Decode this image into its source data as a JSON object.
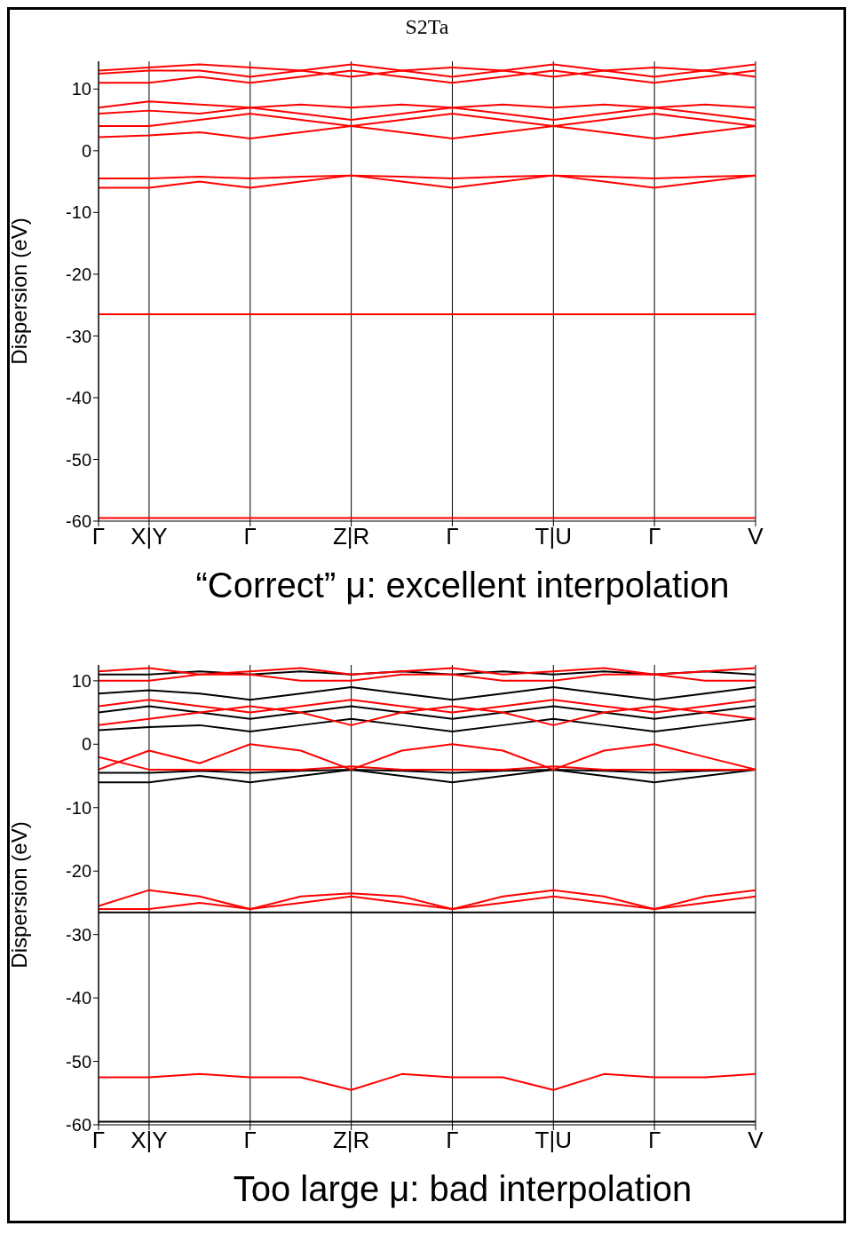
{
  "chart_data": [
    {
      "type": "line",
      "title": "S2Ta",
      "ylabel": "Dispersion (eV)",
      "annotations": [
        "“Correct” μ: excellent interpolation"
      ],
      "categories": [
        "Γ",
        "X|Y",
        null,
        "Γ",
        null,
        "Z|R",
        null,
        "Γ",
        null,
        "T|U",
        null,
        "Γ",
        null,
        "V"
      ],
      "ylim": [
        -60,
        14.5
      ],
      "yticks": [
        -60,
        -50,
        -40,
        -30,
        -20,
        -10,
        0,
        10
      ],
      "grid": "x",
      "marker": "none",
      "line_style": "solid",
      "series": [
        {
          "color": "#ff0000",
          "values": [
            -59.5,
            -59.5,
            -59.5,
            -59.5,
            -59.5,
            -59.5,
            -59.5,
            -59.5,
            -59.5,
            -59.5,
            -59.5,
            -59.5,
            -59.5,
            -59.5
          ]
        },
        {
          "color": "#ff0000",
          "values": [
            -26.5,
            -26.5,
            -26.5,
            -26.5,
            -26.5,
            -26.5,
            -26.5,
            -26.5,
            -26.5,
            -26.5,
            -26.5,
            -26.5,
            -26.5,
            -26.5
          ]
        },
        {
          "color": "#ff0000",
          "values": [
            -6,
            -6,
            -5,
            -6,
            -5,
            -4,
            -5,
            -6,
            -5,
            -4,
            -5,
            -6,
            -5,
            -4
          ]
        },
        {
          "color": "#ff0000",
          "values": [
            -4.5,
            -4.5,
            -4.2,
            -4.5,
            -4.2,
            -4,
            -4.2,
            -4.5,
            -4.2,
            -4,
            -4.2,
            -4.5,
            -4.2,
            -4
          ]
        },
        {
          "color": "#ff0000",
          "values": [
            2.2,
            2.5,
            3,
            2,
            3,
            4,
            3,
            2,
            3,
            4,
            3,
            2,
            3,
            4
          ]
        },
        {
          "color": "#ff0000",
          "values": [
            4,
            4,
            5,
            6,
            5,
            4,
            5,
            6,
            5,
            4,
            5,
            6,
            5,
            4
          ]
        },
        {
          "color": "#ff0000",
          "values": [
            6,
            6.5,
            6,
            7,
            6,
            5,
            6,
            7,
            6,
            5,
            6,
            7,
            6,
            5
          ]
        },
        {
          "color": "#ff0000",
          "values": [
            7,
            8,
            7.5,
            7,
            7.5,
            7,
            7.5,
            7,
            7.5,
            7,
            7.5,
            7,
            7.5,
            7
          ]
        },
        {
          "color": "#ff0000",
          "values": [
            11,
            11,
            12,
            11,
            12,
            13,
            12,
            11,
            12,
            13,
            12,
            11,
            12,
            13
          ]
        },
        {
          "color": "#ff0000",
          "values": [
            12.5,
            13,
            13,
            12,
            13,
            12,
            13,
            12,
            13,
            12,
            13,
            12,
            13,
            12
          ]
        },
        {
          "color": "#ff0000",
          "values": [
            13,
            13.5,
            14,
            13.5,
            13,
            14,
            13,
            13.5,
            13,
            14,
            13,
            13.5,
            13,
            14
          ]
        }
      ]
    },
    {
      "type": "line",
      "ylabel": "Dispersion (eV)",
      "annotations": [
        "Too large μ: bad interpolation"
      ],
      "categories": [
        "Γ",
        "X|Y",
        null,
        "Γ",
        null,
        "Z|R",
        null,
        "Γ",
        null,
        "T|U",
        null,
        "Γ",
        null,
        "V"
      ],
      "ylim": [
        -60,
        12.5
      ],
      "yticks": [
        -60,
        -50,
        -40,
        -30,
        -20,
        -10,
        0,
        10
      ],
      "grid": "x",
      "marker": "none",
      "line_style": "solid",
      "series": [
        {
          "color": "#000000",
          "values": [
            -59.5,
            -59.5,
            -59.5,
            -59.5,
            -59.5,
            -59.5,
            -59.5,
            -59.5,
            -59.5,
            -59.5,
            -59.5,
            -59.5,
            -59.5,
            -59.5
          ]
        },
        {
          "color": "#000000",
          "values": [
            -26.5,
            -26.5,
            -26.5,
            -26.5,
            -26.5,
            -26.5,
            -26.5,
            -26.5,
            -26.5,
            -26.5,
            -26.5,
            -26.5,
            -26.5,
            -26.5
          ]
        },
        {
          "color": "#000000",
          "values": [
            -6,
            -6,
            -5,
            -6,
            -5,
            -4,
            -5,
            -6,
            -5,
            -4,
            -5,
            -6,
            -5,
            -4
          ]
        },
        {
          "color": "#000000",
          "values": [
            -4.5,
            -4.5,
            -4.2,
            -4.5,
            -4.2,
            -4,
            -4.2,
            -4.5,
            -4.2,
            -4,
            -4.2,
            -4.5,
            -4.2,
            -4
          ]
        },
        {
          "color": "#000000",
          "values": [
            2.2,
            2.7,
            3,
            2,
            3,
            4,
            3,
            2,
            3,
            4,
            3,
            2,
            3,
            4
          ]
        },
        {
          "color": "#000000",
          "values": [
            5,
            6,
            5,
            4,
            5,
            6,
            5,
            4,
            5,
            6,
            5,
            4,
            5,
            6
          ]
        },
        {
          "color": "#000000",
          "values": [
            8,
            8.5,
            8,
            7,
            8,
            9,
            8,
            7,
            8,
            9,
            8,
            7,
            8,
            9
          ]
        },
        {
          "color": "#000000",
          "values": [
            11,
            11,
            11.5,
            11,
            11.5,
            11,
            11.5,
            11,
            11.5,
            11,
            11.5,
            11,
            11.5,
            11
          ]
        },
        {
          "color": "#ff0000",
          "values": [
            -52.5,
            -52.5,
            -52,
            -52.5,
            -52.5,
            -54.5,
            -52,
            -52.5,
            -52.5,
            -54.5,
            -52,
            -52.5,
            -52.5,
            -52
          ]
        },
        {
          "color": "#ff0000",
          "values": [
            -26,
            -26,
            -25,
            -26,
            -25,
            -24,
            -25,
            -26,
            -25,
            -24,
            -25,
            -26,
            -25,
            -24
          ]
        },
        {
          "color": "#ff0000",
          "values": [
            -25.5,
            -23,
            -24,
            -26,
            -24,
            -23.5,
            -24,
            -26,
            -24,
            -23,
            -24,
            -26,
            -24,
            -23
          ]
        },
        {
          "color": "#ff0000",
          "values": [
            -4,
            -1,
            -3,
            0,
            -1,
            -4,
            -1,
            0,
            -1,
            -4,
            -1,
            0,
            -2,
            -4
          ]
        },
        {
          "color": "#ff0000",
          "values": [
            -2,
            -4,
            -4,
            -4,
            -4,
            -3.5,
            -4,
            -4,
            -4,
            -3.5,
            -4,
            -4,
            -4,
            -4
          ]
        },
        {
          "color": "#ff0000",
          "values": [
            3,
            4,
            5,
            6,
            5,
            3,
            5,
            6,
            5,
            3,
            5,
            6,
            5,
            4
          ]
        },
        {
          "color": "#ff0000",
          "values": [
            6,
            7,
            6,
            5,
            6,
            7,
            6,
            5,
            6,
            7,
            6,
            5,
            6,
            7
          ]
        },
        {
          "color": "#ff0000",
          "values": [
            10,
            10,
            11,
            11,
            10,
            10,
            11,
            11,
            10,
            10,
            11,
            11,
            10,
            10
          ]
        },
        {
          "color": "#ff0000",
          "values": [
            11.5,
            12,
            11,
            11.5,
            12,
            11,
            11.5,
            12,
            11,
            11.5,
            12,
            11,
            11.5,
            12
          ]
        }
      ]
    }
  ]
}
